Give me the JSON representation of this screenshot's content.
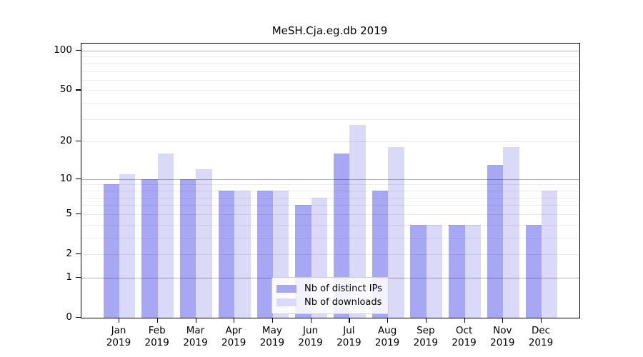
{
  "chart_data": {
    "type": "bar",
    "title": "MeSH.Cja.eg.db 2019",
    "y_scale": "log1p",
    "categories": [
      "Jan",
      "Feb",
      "Mar",
      "Apr",
      "May",
      "Jun",
      "Jul",
      "Aug",
      "Sep",
      "Oct",
      "Nov",
      "Dec"
    ],
    "year": "2019",
    "series": [
      {
        "name": "Nb of distinct IPs",
        "color": "#a7a7f3",
        "values": [
          9,
          10,
          10,
          8,
          8,
          6,
          16,
          8,
          4,
          4,
          13,
          4
        ]
      },
      {
        "name": "Nb of downloads",
        "color": "#dadaf8",
        "values": [
          11,
          16,
          12,
          8,
          8,
          7,
          27,
          18,
          4,
          4,
          18,
          8
        ]
      }
    ],
    "y_ticks": [
      0,
      1,
      2,
      5,
      10,
      20,
      50,
      100
    ],
    "grid_major": [
      1,
      10,
      100
    ],
    "grid_minor": [
      2,
      3,
      4,
      5,
      6,
      7,
      8,
      9,
      20,
      30,
      40,
      50,
      60,
      70,
      80,
      90
    ],
    "ylim": [
      0,
      110
    ],
    "grid": "horizontal, drawn over bars",
    "legend_position": "bottom-center-inside"
  }
}
